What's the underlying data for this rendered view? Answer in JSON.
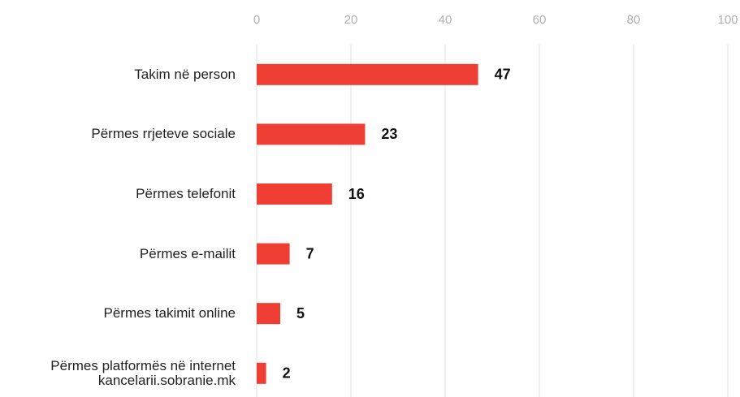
{
  "chart_data": {
    "type": "bar",
    "orientation": "horizontal",
    "categories": [
      "Takim në person",
      "Përmes rrjeteve sociale",
      "Përmes telefonit",
      "Përmes e-mailit",
      "Përmes takimit online",
      "Përmes platformës në internet\nkancelarii.sobranie.mk"
    ],
    "values": [
      47,
      23,
      16,
      7,
      5,
      2
    ],
    "color": "#ef3e33",
    "xlim": [
      0,
      100
    ],
    "xticks": [
      0,
      20,
      40,
      60,
      80,
      100
    ],
    "grid": true
  }
}
